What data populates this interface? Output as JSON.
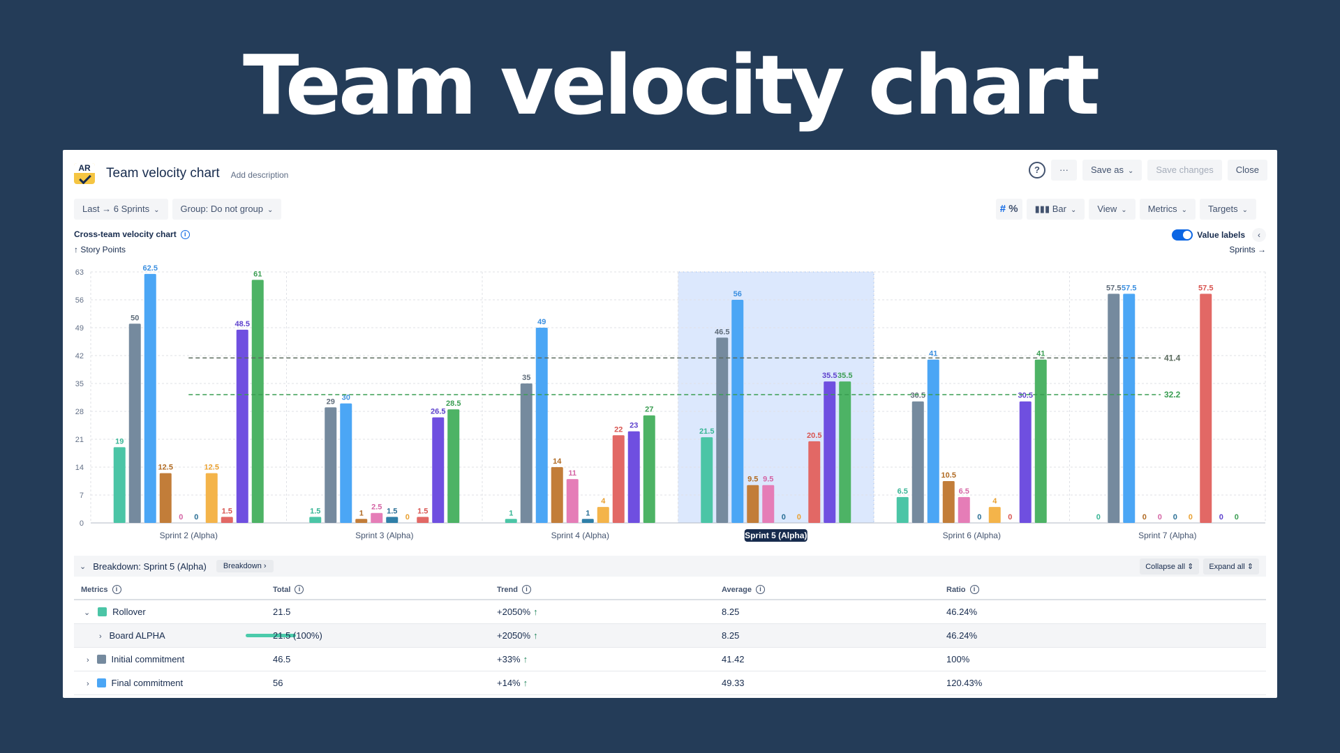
{
  "hero_title": "Team velocity chart",
  "header": {
    "logo_text": "AR",
    "title": "Team velocity chart",
    "add_description": "Add description",
    "help": "?",
    "more": "···",
    "save_as": "Save as",
    "save_changes": "Save changes",
    "close": "Close"
  },
  "toolbar": {
    "range": "Last → 6 Sprints",
    "group": "Group: Do not group",
    "hash": "#",
    "percent": "%",
    "bar": "Bar",
    "view": "View",
    "metrics": "Metrics",
    "targets": "Targets"
  },
  "chart_header": {
    "title": "Cross-team velocity chart",
    "y_axis_label": "↑ Story Points",
    "x_axis_label": "Sprints →",
    "value_labels": "Value labels"
  },
  "chart_data": {
    "type": "bar",
    "y_ticks": [
      0,
      7,
      14,
      21,
      28,
      35,
      42,
      49,
      56,
      63
    ],
    "ylim": [
      0,
      63
    ],
    "categories": [
      "Sprint 2 (Alpha)",
      "Sprint 3 (Alpha)",
      "Sprint 4 (Alpha)",
      "Sprint 5 (Alpha)",
      "Sprint 6 (Alpha)",
      "Sprint 7 (Alpha)"
    ],
    "highlighted_category": "Sprint 5 (Alpha)",
    "series": [
      {
        "name": "Rollover",
        "color": "#4bc5a6",
        "label_color": "#37b595",
        "values": [
          19,
          1.5,
          1,
          21.5,
          6.5,
          0
        ]
      },
      {
        "name": "Initial commitment",
        "color": "#758a9e",
        "label_color": "#5f6c7a",
        "values": [
          50,
          29,
          35,
          46.5,
          30.5,
          57.5
        ]
      },
      {
        "name": "Final commitment",
        "color": "#4ba6f5",
        "label_color": "#3b8fe0",
        "values": [
          62.5,
          30,
          49,
          56,
          41,
          57.5
        ]
      },
      {
        "color": "#c27d39",
        "label_color": "#b06a22",
        "values": [
          12.5,
          1,
          14,
          9.5,
          10.5,
          0
        ]
      },
      {
        "color": "#e57db7",
        "label_color": "#d464a4",
        "values": [
          0,
          2.5,
          11,
          9.5,
          6.5,
          0
        ]
      },
      {
        "color": "#2f7fa8",
        "label_color": "#2a6f95",
        "values": [
          0,
          1.5,
          1,
          0,
          0,
          0
        ]
      },
      {
        "color": "#f4b44a",
        "label_color": "#e9a030",
        "values": [
          12.5,
          0,
          4,
          0,
          4,
          0
        ]
      },
      {
        "color": "#e26865",
        "label_color": "#d85450",
        "values": [
          1.5,
          1.5,
          22,
          20.5,
          0,
          57.5
        ]
      },
      {
        "color": "#6f4fe0",
        "label_color": "#5b3fcc",
        "values": [
          48.5,
          26.5,
          23,
          35.5,
          30.5,
          0
        ]
      },
      {
        "color": "#4db365",
        "label_color": "#3a9d52",
        "values": [
          61,
          28.5,
          27,
          35.5,
          41,
          0
        ]
      }
    ],
    "target_lines": [
      {
        "value": 41.4,
        "label": "41.4",
        "color": "#5b6b5e"
      },
      {
        "value": 32.2,
        "label": "32.2",
        "color": "#3a9d52"
      }
    ]
  },
  "breakdown": {
    "title": "Breakdown: Sprint 5 (Alpha)",
    "chip": "Breakdown",
    "collapse_all": "Collapse all",
    "expand_all": "Expand all"
  },
  "table": {
    "headers": {
      "metrics": "Metrics",
      "total": "Total",
      "trend": "Trend",
      "average": "Average",
      "ratio": "Ratio"
    },
    "rows": [
      {
        "label": "Rollover",
        "color": "#4bc5a6",
        "total": "21.5",
        "trend": "+2050%",
        "average": "8.25",
        "ratio": "46.24%"
      },
      {
        "label": "Board ALPHA",
        "total": "21.5 (100%)",
        "trend": "+2050%",
        "average": "8.25",
        "ratio": "46.24%",
        "bar_fill": 1.0
      },
      {
        "label": "Initial commitment",
        "color": "#758a9e",
        "total": "46.5",
        "trend": "+33%",
        "average": "41.42",
        "ratio": "100%"
      },
      {
        "label": "Final commitment",
        "color": "#4ba6f5",
        "total": "56",
        "trend": "+14%",
        "average": "49.33",
        "ratio": "120.43%"
      }
    ]
  }
}
